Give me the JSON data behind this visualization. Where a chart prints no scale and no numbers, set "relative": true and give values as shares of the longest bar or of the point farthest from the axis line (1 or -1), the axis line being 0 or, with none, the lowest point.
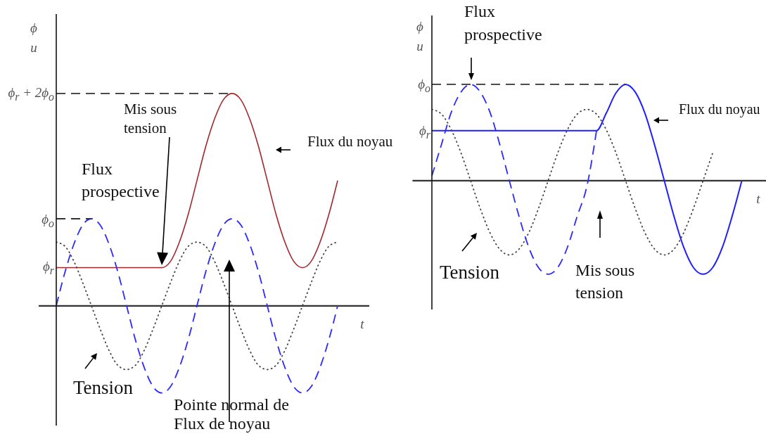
{
  "chart_data": [
    {
      "type": "line",
      "relative": true,
      "ylabel": "ϕ u",
      "xlabel": "t",
      "categories": [
        null,
        null,
        null,
        null,
        null,
        null,
        null,
        null,
        null,
        null,
        null,
        null,
        null,
        null,
        null,
        null,
        null,
        null,
        null,
        null,
        null,
        null,
        null,
        null,
        null,
        null,
        null,
        null,
        null,
        null,
        null,
        null,
        null
      ],
      "series": [
        {
          "name": "Flux du noyau",
          "color": "#a3262a",
          "line_style": "solid",
          "values": [
            0.18,
            0.18,
            0.18,
            0.18,
            0.18,
            0.18,
            0.18,
            0.18,
            0.18,
            0.18,
            0.18,
            0.18,
            0.18,
            0.21,
            0.3,
            0.43,
            0.59,
            0.75,
            0.88,
            0.97,
            1,
            0.97,
            0.88,
            0.75,
            0.59,
            0.43,
            0.3,
            0.21,
            0.18,
            0.21,
            0.3,
            0.43,
            0.59
          ]
        },
        {
          "name": "Flux prospective",
          "color": "#2a2aff",
          "line_style": "dashed",
          "values": [
            0,
            0.16,
            0.29,
            0.38,
            0.41,
            0.38,
            0.29,
            0.16,
            0,
            -0.16,
            -0.29,
            -0.38,
            -0.41,
            -0.38,
            -0.29,
            -0.16,
            0,
            0.16,
            0.29,
            0.38,
            0.41,
            0.38,
            0.29,
            0.16,
            0,
            -0.16,
            -0.29,
            -0.38,
            -0.41,
            -0.38,
            -0.29,
            -0.16,
            0
          ]
        },
        {
          "name": "Tension",
          "color": "#444444",
          "line_style": "dotted",
          "values": [
            0.3,
            0.28,
            0.21,
            0.11,
            0,
            -0.11,
            -0.21,
            -0.28,
            -0.3,
            -0.28,
            -0.21,
            -0.11,
            0,
            0.11,
            0.21,
            0.28,
            0.3,
            0.28,
            0.21,
            0.11,
            0,
            -0.11,
            -0.21,
            -0.28,
            -0.3,
            -0.28,
            -0.21,
            -0.11,
            0,
            0.11,
            0.21,
            0.28,
            0.3
          ]
        },
        {
          "color": "#333333",
          "line_style": "dashed",
          "values": [
            1,
            1,
            1,
            1,
            1,
            1,
            1,
            1,
            1,
            1,
            1,
            1,
            1,
            1,
            1,
            1,
            1,
            1,
            1,
            1,
            1,
            null,
            null,
            null,
            null,
            null,
            null,
            null,
            null,
            null,
            null,
            null,
            null
          ]
        },
        {
          "color": "#333333",
          "line_style": "dashed",
          "values": [
            0.41,
            0.41,
            0.41,
            0.41,
            0.41,
            null,
            null,
            null,
            null,
            null,
            null,
            null,
            null,
            null,
            null,
            null,
            null,
            null,
            null,
            null,
            null,
            null,
            null,
            null,
            null,
            null,
            null,
            null,
            null,
            null,
            null,
            null,
            null
          ]
        }
      ],
      "annotations": [
        "Mis sous tension",
        "Pointe normal de Flux de noyau",
        "ϕ$_{r}$ + 2ϕ$_{o}$",
        "ϕ$_{o}$",
        "ϕ$_{r}$"
      ]
    },
    {
      "type": "line",
      "relative": true,
      "ylabel": "ϕ u",
      "xlabel": "t",
      "categories": [
        null,
        null,
        null,
        null,
        null,
        null,
        null,
        null,
        null,
        null,
        null,
        null,
        null,
        null,
        null,
        null,
        null,
        null,
        null,
        null,
        null,
        null,
        null,
        null,
        null,
        null,
        null,
        null,
        null,
        null,
        null,
        null,
        null
      ],
      "series": [
        {
          "name": "Flux du noyau",
          "color": "#1f1fff",
          "line_style": "solid",
          "values": [
            0.52,
            0.52,
            0.52,
            0.52,
            0.52,
            0.52,
            0.52,
            0.52,
            0.52,
            0.52,
            0.52,
            0.52,
            0.52,
            0.52,
            0.52,
            0.52,
            0.52,
            0.52,
            0.7,
            0.91,
            1,
            0.92,
            0.7,
            0.37,
            0,
            -0.37,
            -0.69,
            -0.9,
            -0.97,
            -0.9,
            -0.69,
            -0.37,
            0
          ]
        },
        {
          "name": "Flux prospective",
          "color": "#2a2aff",
          "line_style": "dashed",
          "values": [
            0.05,
            0.38,
            0.71,
            0.92,
            1,
            0.92,
            0.71,
            0.38,
            0,
            -0.37,
            -0.69,
            -0.9,
            -0.97,
            -0.9,
            -0.69,
            -0.37,
            -0.06,
            0.52,
            null,
            null,
            null,
            null,
            null,
            null,
            null,
            null,
            null,
            null,
            null,
            null,
            null,
            null,
            null
          ]
        },
        {
          "name": "Tension",
          "color": "#444444",
          "line_style": "dotted",
          "values": [
            0.74,
            0.69,
            0.53,
            0.29,
            0,
            -0.29,
            -0.54,
            -0.71,
            -0.77,
            -0.71,
            -0.54,
            -0.29,
            0,
            0.29,
            0.53,
            0.69,
            0.74,
            0.69,
            0.53,
            0.29,
            0,
            -0.29,
            -0.54,
            -0.71,
            -0.77,
            -0.71,
            -0.54,
            -0.29,
            0,
            0.29,
            null,
            null,
            null
          ]
        },
        {
          "color": "#333333",
          "line_style": "dashed",
          "values": [
            1,
            1,
            1,
            1,
            1,
            1,
            1,
            1,
            1,
            1,
            1,
            1,
            1,
            1,
            1,
            1,
            1,
            1,
            1,
            1,
            1,
            null,
            null,
            null,
            null,
            null,
            null,
            null,
            null,
            null,
            null,
            null,
            null
          ]
        }
      ],
      "annotations": [
        "Mis sous tension",
        "ϕ$_{o}$",
        "ϕ$_{r}$"
      ]
    }
  ]
}
